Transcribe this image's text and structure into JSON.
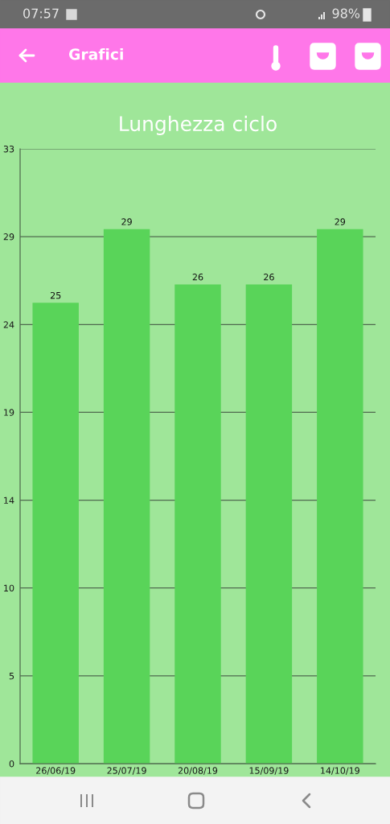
{
  "chart_data": {
    "type": "bar",
    "title": "Lunghezza ciclo",
    "categories": [
      "26/06/19",
      "25/07/19",
      "20/08/19",
      "15/09/19",
      "14/10/19"
    ],
    "values": [
      25,
      29,
      26,
      26,
      29
    ],
    "color": "#59d459",
    "ylim": [
      0,
      33.35
    ],
    "yticks": [
      0,
      {
        "value": 4.76,
        "label": "5"
      },
      {
        "value": 9.53,
        "label": "10"
      },
      {
        "value": 14.29,
        "label": "14"
      },
      {
        "value": 19.06,
        "label": "19"
      },
      {
        "value": 23.82,
        "label": "24"
      },
      {
        "value": 28.59,
        "label": "29"
      },
      {
        "value": 33.35,
        "label": "33"
      }
    ],
    "grid": "y",
    "data_labels": true,
    "annotations": [
      "07:57",
      "98%",
      "Grafici"
    ]
  }
}
